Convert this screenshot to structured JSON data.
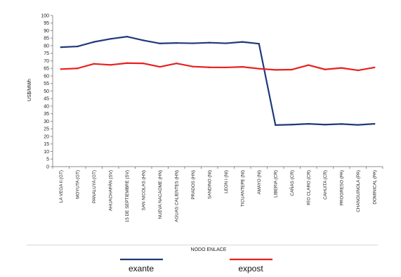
{
  "chart_data": {
    "type": "line",
    "ylabel": "US$/MWh",
    "xlabel": "NODO ENLACE",
    "ylim": [
      0,
      100
    ],
    "yticks": [
      0,
      5,
      10,
      15,
      20,
      25,
      30,
      35,
      40,
      45,
      50,
      55,
      60,
      65,
      70,
      75,
      80,
      85,
      90,
      95,
      100
    ],
    "grid": false,
    "legend_position": "bottom",
    "categories": [
      "LA VEGA II (GT)",
      "MOYUTA (GT)",
      "PANALUYA (GT)",
      "AHUACHAPÁN (SV)",
      "15 DE SEPTIEMBRE (SV)",
      "SAN NICOLAS (HN)",
      "NUEVA NACAOME (HN)",
      "AGUAS CALIENTES (HN)",
      "PRADOS (HN)",
      "SANDINO (NI)",
      "LEON I (NI)",
      "TICUANTEPE (NI)",
      "AMAYO (NI)",
      "LIBERIA (CR)",
      "CAÑAS (CR)",
      "RÍO CLARO (CR)",
      "CAHUITA (CR)",
      "PROGRESO (PA)",
      "CHANGUINOLA (PA)",
      "DOMINICAL (PA)"
    ],
    "series": [
      {
        "name": "exante",
        "color": "#1f3a7a",
        "values": [
          79,
          79.5,
          82.5,
          84.5,
          86,
          83.5,
          81.5,
          81.8,
          81.6,
          82,
          81.6,
          82.5,
          81.3,
          27.5,
          27.8,
          28.3,
          27.8,
          28.2,
          27.6,
          28.3
        ]
      },
      {
        "name": "expost",
        "color": "#e8201e",
        "values": [
          64.5,
          65,
          68,
          67.3,
          68.5,
          68.3,
          66,
          68.3,
          66.2,
          65.7,
          65.6,
          66,
          64.8,
          64,
          64.2,
          67.2,
          64.3,
          65.3,
          63.7,
          65.6
        ]
      }
    ]
  }
}
